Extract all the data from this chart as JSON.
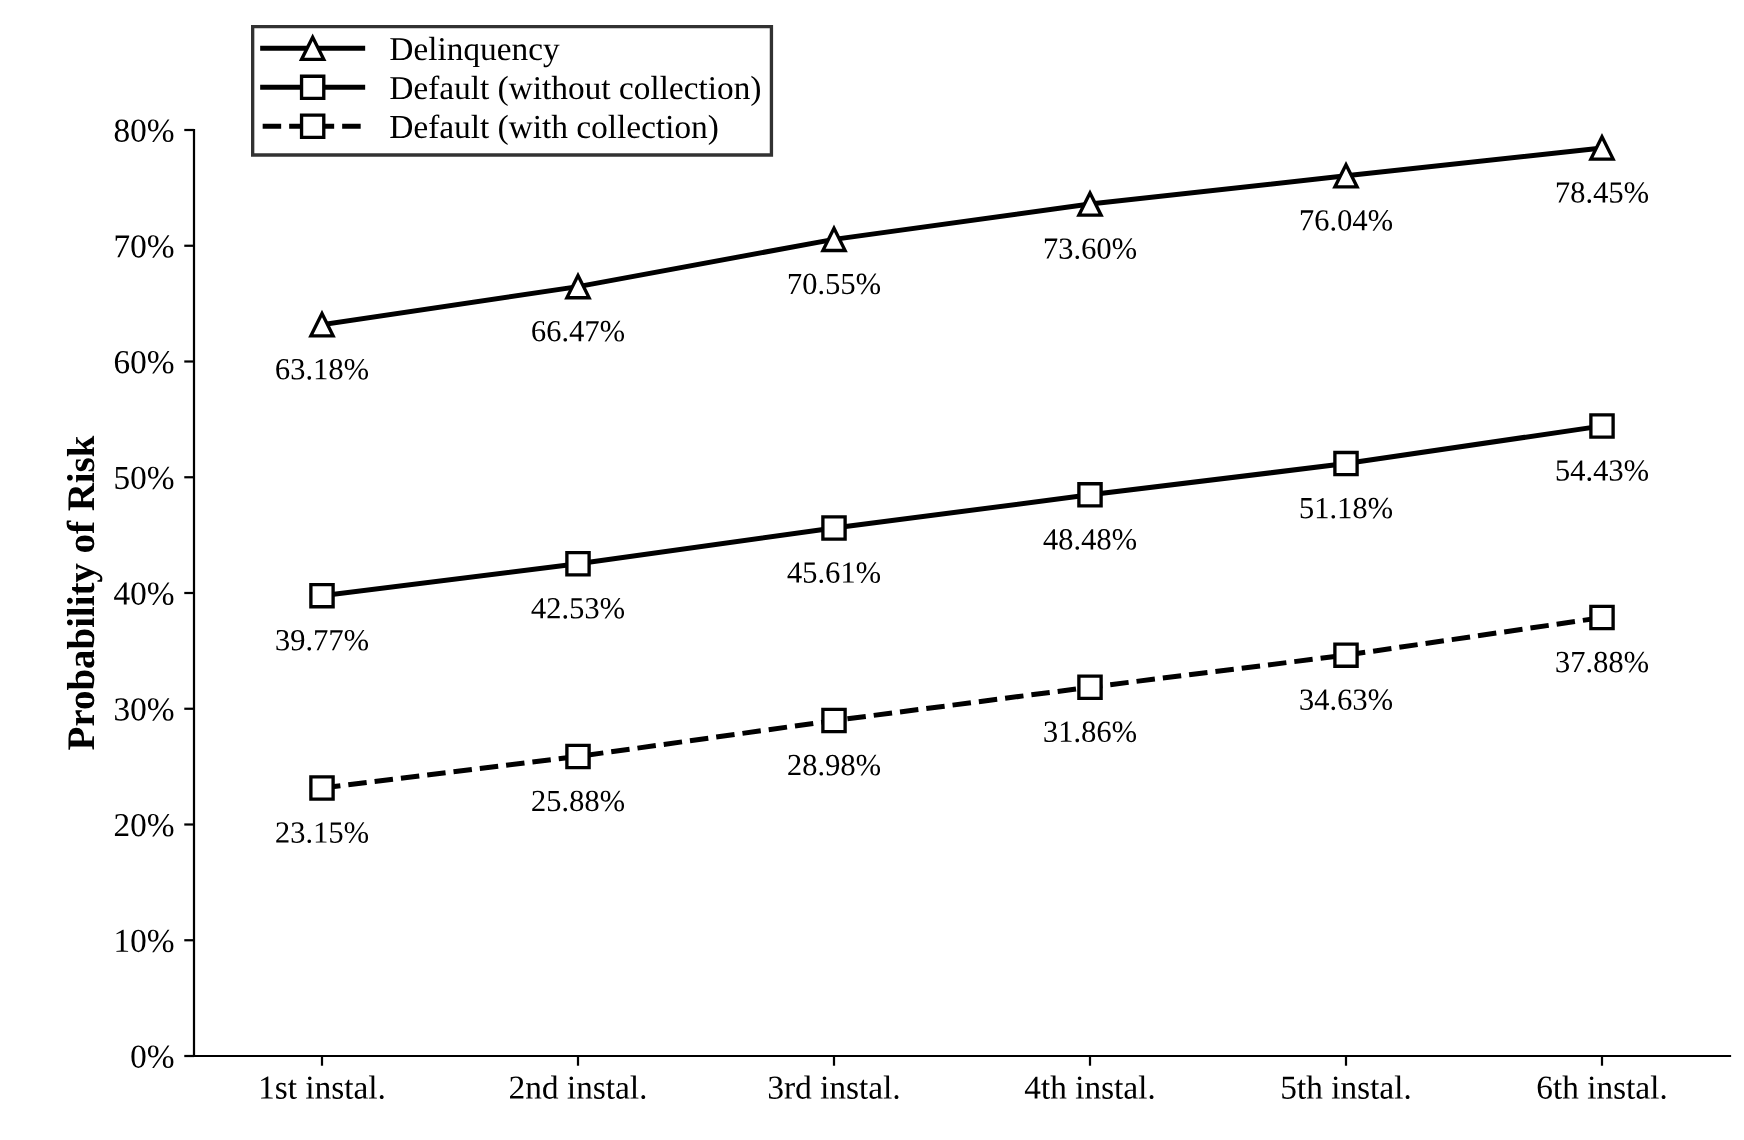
{
  "chart_data": {
    "type": "line",
    "ylabel": "Probability of Risk",
    "categories": [
      "1st instal.",
      "2nd instal.",
      "3rd instal.",
      "4th instal.",
      "5th instal.",
      "6th instal."
    ],
    "series": [
      {
        "name": "Delinquency",
        "color": "#000000",
        "marker": "triangle",
        "line_style": "solid",
        "values": [
          63.18,
          66.47,
          70.55,
          73.6,
          76.04,
          78.45
        ],
        "value_labels": [
          "63.18%",
          "66.47%",
          "70.55%",
          "73.60%",
          "76.04%",
          "78.45%"
        ]
      },
      {
        "name": "Default (without collection)",
        "color": "#000000",
        "marker": "square",
        "line_style": "solid",
        "values": [
          39.77,
          42.53,
          45.61,
          48.48,
          51.18,
          54.43
        ],
        "value_labels": [
          "39.77%",
          "42.53%",
          "45.61%",
          "48.48%",
          "51.18%",
          "54.43%"
        ]
      },
      {
        "name": "Default (with collection)",
        "color": "#000000",
        "marker": "square",
        "line_style": "dashed",
        "values": [
          23.15,
          25.88,
          28.98,
          31.86,
          34.63,
          37.88
        ],
        "value_labels": [
          "23.15%",
          "25.88%",
          "28.98%",
          "31.86%",
          "34.63%",
          "37.88%"
        ]
      }
    ],
    "ylim": [
      0,
      80
    ],
    "yticks": [
      {
        "value": 0,
        "label": "0%"
      },
      {
        "value": 10,
        "label": "10%"
      },
      {
        "value": 20,
        "label": "20%"
      },
      {
        "value": 30,
        "label": "30%"
      },
      {
        "value": 40,
        "label": "40%"
      },
      {
        "value": 50,
        "label": "50%"
      },
      {
        "value": 60,
        "label": "60%"
      },
      {
        "value": 70,
        "label": "70%"
      },
      {
        "value": 80,
        "label": "80%"
      }
    ],
    "grid": false,
    "legend": "top left"
  }
}
